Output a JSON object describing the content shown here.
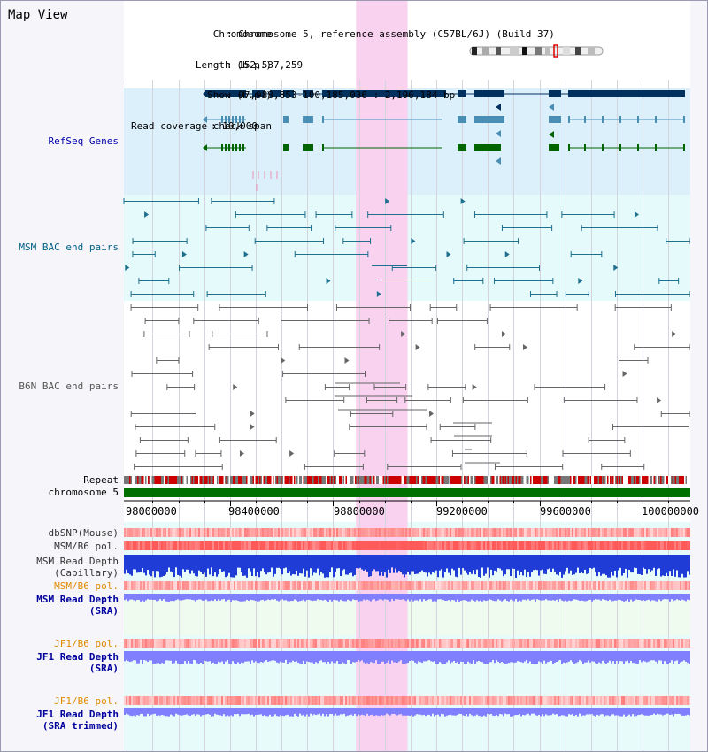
{
  "header": {
    "title": "Map View",
    "info_keys": [
      "Chromosome",
      "Length (b.p.)",
      "Show (b.p.)",
      "Read coverage check span"
    ],
    "info_values": [
      "Chromosome 5, reference assembly (C57BL/6J) (Build 37)",
      "152,537,259",
      "97,988,853-100,185,036 : 2,196,184 bp",
      "10,000"
    ]
  },
  "tracks": {
    "refseq": "RefSeq Genes",
    "msm_bac": "MSM BAC end pairs",
    "b6n_bac": "B6N BAC end pairs",
    "repeat": "Repeat",
    "chromosome": "chromosome 5"
  },
  "axis": {
    "range_bp": [
      97988853,
      100185036
    ],
    "ticks": [
      "98000000",
      "98400000",
      "98800000",
      "99200000",
      "99600000",
      "100000000"
    ]
  },
  "highlight_bp": [
    98888853,
    99088853
  ],
  "depth_tracks": {
    "dbsnp": "dbSNP(Mouse)",
    "msm_b6_pol_a": "MSM/B6 pol.",
    "msm_depth_cap_1": "MSM Read Depth",
    "msm_depth_cap_2": "(Capillary)",
    "msm_b6_pol_b": "MSM/B6 pol.",
    "msm_depth_sra_1": "MSM Read Depth",
    "msm_depth_sra_2": "(SRA)",
    "jf1_pol_a": "JF1/B6 pol.",
    "jf1_depth_1": "JF1 Read Depth",
    "jf1_depth_2": "(SRA)",
    "jf1_pol_b": "JF1/B6 pol.",
    "jf1_trim_1": "JF1 Read Depth",
    "jf1_trim_2": "(SRA trimmed)"
  },
  "colors": {
    "refseq_bg": "#dcf0fb",
    "msm_bg": "#e4fafb",
    "highlight": "#f8d2ef",
    "gene_dark": "#00305e",
    "gene_mid": "#4a8eb4",
    "gene_green": "#006400",
    "msm_pair": "#1f6f8f",
    "b6n_pair": "#666666",
    "snp": "#f08080",
    "depth_blue": "#1f3dd6",
    "depth_light": "#8080ff",
    "orange_label": "#e08a00",
    "blue_label": "#00009c"
  }
}
